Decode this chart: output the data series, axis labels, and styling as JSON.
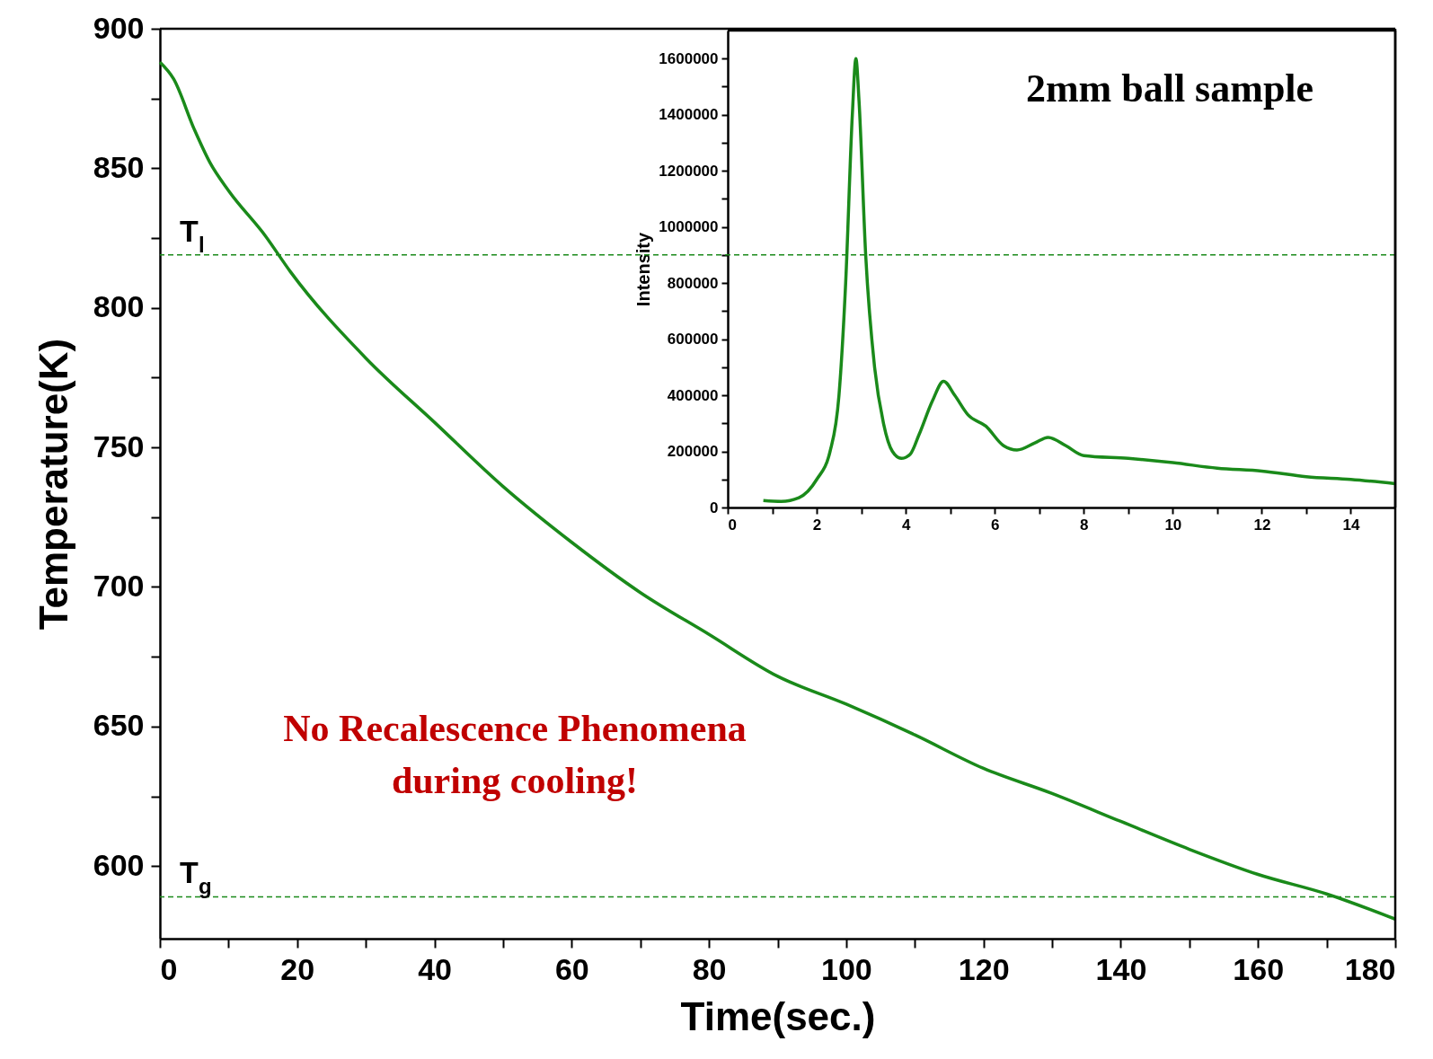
{
  "chart_data": [
    {
      "type": "line",
      "xlabel": "Time(sec.)",
      "ylabel": "Temperature(K)",
      "xlim": [
        0,
        180
      ],
      "ylim": [
        574,
        900
      ],
      "xticks": [
        0,
        {
          "value": 10,
          "label": null
        },
        20,
        {
          "value": 30,
          "label": null
        },
        40,
        {
          "value": 50,
          "label": null
        },
        60,
        {
          "value": 70,
          "label": null
        },
        80,
        {
          "value": 90,
          "label": null
        },
        100,
        {
          "value": 110,
          "label": null
        },
        120,
        {
          "value": 130,
          "label": null
        },
        140,
        {
          "value": 150,
          "label": null
        },
        160,
        {
          "value": 170,
          "label": null
        },
        180
      ],
      "yticks": [
        600,
        {
          "value": 625,
          "label": null
        },
        650,
        {
          "value": 675,
          "label": null
        },
        700,
        {
          "value": 725,
          "label": null
        },
        750,
        {
          "value": 775,
          "label": null
        },
        800,
        {
          "value": 825,
          "label": null
        },
        850,
        {
          "value": 875,
          "label": null
        },
        900
      ],
      "series": [
        {
          "color": "#1a8a1a",
          "x": [
            0,
            2,
            5,
            7.3,
            10,
            15.3,
            19,
            30,
            40,
            50,
            60,
            70,
            80,
            90,
            100,
            110,
            120,
            130,
            140,
            150,
            160,
            170,
            180
          ],
          "values": [
            888,
            882,
            864,
            852,
            842,
            826,
            813,
            782,
            759,
            736,
            716,
            698,
            683,
            668,
            658,
            647,
            635,
            626,
            616,
            606,
            597,
            590,
            581
          ]
        }
      ],
      "ref_lines": [
        {
          "axis": "y",
          "value": 819,
          "label": "T$_{l}$",
          "color": "#1a8a1a",
          "line_style": "dashed"
        },
        {
          "axis": "y",
          "value": 589,
          "label": "T$_{g}$",
          "color": "#1a8a1a",
          "line_style": "dashed"
        }
      ],
      "annotations": [
        "No Recalescence Phenomena\nduring cooling!"
      ],
      "marker": "none",
      "line_style": "solid"
    },
    {
      "type": "line",
      "ylabel": "Intensity",
      "xlim": [
        0,
        15
      ],
      "ylim": [
        0,
        1700000
      ],
      "xticks": [
        0,
        {
          "value": 1,
          "label": null
        },
        2,
        {
          "value": 3,
          "label": null
        },
        4,
        {
          "value": 5,
          "label": null
        },
        6,
        {
          "value": 7,
          "label": null
        },
        8,
        {
          "value": 9,
          "label": null
        },
        10,
        {
          "value": 11,
          "label": null
        },
        12,
        {
          "value": 13,
          "label": null
        },
        14
      ],
      "yticks": [
        0,
        {
          "value": 100000,
          "label": null
        },
        200000,
        {
          "value": 300000,
          "label": null
        },
        400000,
        {
          "value": 500000,
          "label": null
        },
        600000,
        {
          "value": 700000,
          "label": null
        },
        800000,
        {
          "value": 900000,
          "label": null
        },
        1000000,
        {
          "value": 1100000,
          "label": null
        },
        1200000,
        {
          "value": 1300000,
          "label": null
        },
        1400000,
        {
          "value": 1500000,
          "label": null
        },
        1600000
      ],
      "series": [
        {
          "color": "#1a8a1a",
          "x": [
            0.8,
            1.2,
            1.6,
            2.0,
            2.3,
            2.5,
            2.65,
            2.8,
            2.88,
            2.95,
            3.1,
            3.3,
            3.5,
            3.7,
            3.9,
            4.1,
            4.3,
            4.6,
            4.85,
            5.1,
            5.4,
            5.8,
            6.2,
            6.5,
            6.9,
            7.2,
            7.6,
            8.0,
            9.0,
            10.0,
            11,
            12,
            13,
            14,
            15
          ],
          "values": [
            25000,
            22000,
            35000,
            100000,
            200000,
            400000,
            800000,
            1400000,
            1600000,
            1450000,
            900000,
            500000,
            300000,
            200000,
            175000,
            190000,
            260000,
            380000,
            450000,
            400000,
            330000,
            290000,
            220000,
            205000,
            230000,
            250000,
            220000,
            185000,
            175000,
            160000,
            140000,
            130000,
            110000,
            100000,
            85000
          ]
        }
      ],
      "annotations": [
        "2mm ball sample"
      ],
      "marker": "none",
      "line_style": "solid"
    }
  ]
}
